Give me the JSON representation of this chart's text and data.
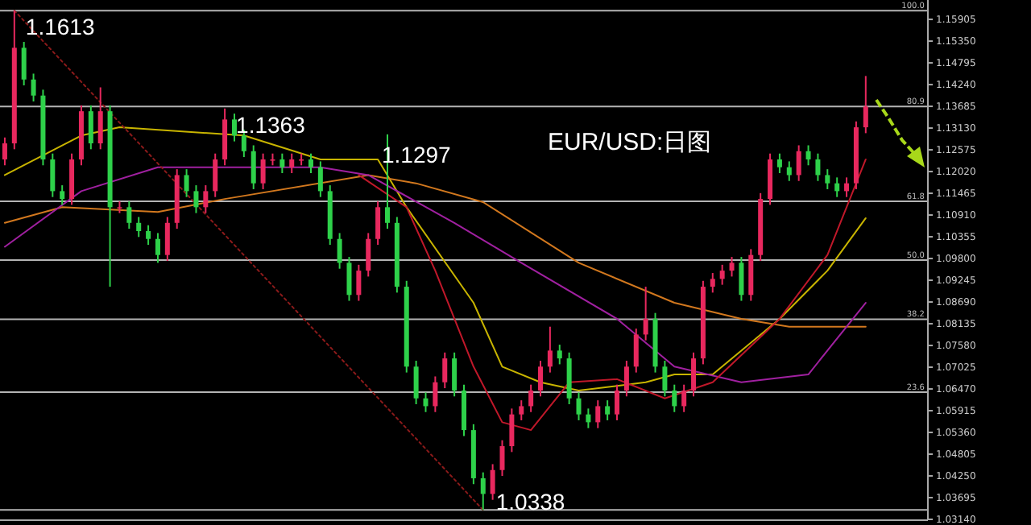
{
  "chart_data": {
    "type": "candlestick",
    "title": "EUR/USD:日图",
    "categories": [
      null,
      null,
      null,
      null,
      null,
      null,
      null,
      null,
      null,
      null,
      null,
      null,
      null,
      null,
      null,
      null,
      null,
      null,
      null,
      null,
      null,
      null,
      null,
      null,
      null,
      null,
      null,
      null,
      null,
      null,
      null,
      null,
      null,
      null,
      null,
      null,
      null,
      null,
      null,
      null,
      null,
      null,
      null,
      null,
      null,
      null,
      null,
      null,
      null,
      null,
      null,
      null,
      null,
      null,
      null,
      null,
      null,
      null,
      null,
      null,
      null,
      null,
      null,
      null,
      null,
      null,
      null,
      null,
      null,
      null,
      null,
      null,
      null,
      null,
      null,
      null,
      null,
      null,
      null,
      null,
      null,
      null,
      null,
      null,
      null,
      null,
      null,
      null,
      null,
      null,
      null,
      null,
      null,
      null,
      null,
      null,
      null
    ],
    "ohlc": [
      [
        1.1233,
        1.1289,
        1.1218,
        1.1274
      ],
      [
        1.1274,
        1.1613,
        1.1259,
        1.1518
      ],
      [
        1.1518,
        1.1533,
        1.1422,
        1.1437
      ],
      [
        1.1437,
        1.1452,
        1.1381,
        1.1396
      ],
      [
        1.1396,
        1.1411,
        1.1218,
        1.1233
      ],
      [
        1.1233,
        1.1248,
        1.1137,
        1.1152
      ],
      [
        1.1152,
        1.1167,
        1.1117,
        1.1132
      ],
      [
        1.1132,
        1.1248,
        1.1117,
        1.1233
      ],
      [
        1.1233,
        1.1371,
        1.1218,
        1.1356
      ],
      [
        1.1356,
        1.1371,
        1.1259,
        1.1274
      ],
      [
        1.1274,
        1.1417,
        1.1259,
        1.1356
      ],
      [
        1.1356,
        1.1371,
        1.0908,
        1.1111
      ],
      [
        1.1111,
        1.1126,
        1.1096,
        1.1111
      ],
      [
        1.1111,
        1.1126,
        1.1056,
        1.1071
      ],
      [
        1.1071,
        1.1086,
        1.1035,
        1.105
      ],
      [
        1.105,
        1.1065,
        1.1015,
        1.103
      ],
      [
        1.103,
        1.1045,
        1.0969,
        1.0989
      ],
      [
        1.0989,
        1.1086,
        1.0974,
        1.1071
      ],
      [
        1.1071,
        1.1208,
        1.1056,
        1.1193
      ],
      [
        1.1193,
        1.1208,
        1.1137,
        1.1152
      ],
      [
        1.1152,
        1.1167,
        1.1096,
        1.1111
      ],
      [
        1.1111,
        1.1167,
        1.1096,
        1.1152
      ],
      [
        1.1152,
        1.1248,
        1.1137,
        1.1233
      ],
      [
        1.1233,
        1.1363,
        1.1218,
        1.1335
      ],
      [
        1.1335,
        1.135,
        1.1279,
        1.1294
      ],
      [
        1.1294,
        1.1309,
        1.1239,
        1.1254
      ],
      [
        1.1254,
        1.1269,
        1.1157,
        1.1172
      ],
      [
        1.1172,
        1.1248,
        1.1157,
        1.1233
      ],
      [
        1.1233,
        1.1248,
        1.1218,
        1.1233
      ],
      [
        1.1233,
        1.1248,
        1.1198,
        1.1213
      ],
      [
        1.1213,
        1.1248,
        1.1198,
        1.1233
      ],
      [
        1.1233,
        1.1248,
        1.1218,
        1.1233
      ],
      [
        1.1233,
        1.1248,
        1.1198,
        1.1213
      ],
      [
        1.1213,
        1.1228,
        1.1137,
        1.1152
      ],
      [
        1.1152,
        1.1167,
        1.1015,
        1.103
      ],
      [
        1.103,
        1.1045,
        1.0954,
        1.0969
      ],
      [
        1.0969,
        1.0984,
        1.0872,
        1.0887
      ],
      [
        1.0887,
        1.0964,
        1.0872,
        1.0949
      ],
      [
        1.0949,
        1.1045,
        1.0934,
        1.103
      ],
      [
        1.103,
        1.1126,
        1.1015,
        1.1111
      ],
      [
        1.1111,
        1.1297,
        1.1056,
        1.1071
      ],
      [
        1.1071,
        1.1086,
        1.0893,
        1.0908
      ],
      [
        1.0908,
        1.0923,
        1.0689,
        1.0704
      ],
      [
        1.0704,
        1.0719,
        1.0608,
        1.0623
      ],
      [
        1.0623,
        1.0638,
        1.0588,
        1.0603
      ],
      [
        1.0603,
        1.0679,
        1.0588,
        1.0664
      ],
      [
        1.0664,
        1.074,
        1.0649,
        1.0725
      ],
      [
        1.0725,
        1.074,
        1.0628,
        1.0643
      ],
      [
        1.0643,
        1.0658,
        1.0527,
        1.0542
      ],
      [
        1.0542,
        1.0557,
        1.0404,
        1.0419
      ],
      [
        1.0419,
        1.0434,
        1.0338,
        1.0379
      ],
      [
        1.0379,
        1.0455,
        1.0364,
        1.044
      ],
      [
        1.044,
        1.0516,
        1.0425,
        1.0501
      ],
      [
        1.0501,
        1.0597,
        1.0486,
        1.0582
      ],
      [
        1.0582,
        1.0618,
        1.0567,
        1.0603
      ],
      [
        1.0603,
        1.0658,
        1.0588,
        1.0643
      ],
      [
        1.0643,
        1.0719,
        1.0628,
        1.0704
      ],
      [
        1.0704,
        1.0806,
        1.0689,
        1.0745
      ],
      [
        1.0745,
        1.076,
        1.071,
        1.0725
      ],
      [
        1.0725,
        1.074,
        1.0608,
        1.0623
      ],
      [
        1.0623,
        1.0638,
        1.0567,
        1.0582
      ],
      [
        1.0582,
        1.0597,
        1.0547,
        1.0562
      ],
      [
        1.0562,
        1.0618,
        1.0547,
        1.0603
      ],
      [
        1.0603,
        1.0618,
        1.0567,
        1.0582
      ],
      [
        1.0582,
        1.0658,
        1.0567,
        1.0643
      ],
      [
        1.0643,
        1.0719,
        1.0628,
        1.0704
      ],
      [
        1.0704,
        1.0801,
        1.0689,
        1.0786
      ],
      [
        1.0786,
        1.0908,
        1.0771,
        1.0826
      ],
      [
        1.0826,
        1.0841,
        1.0689,
        1.0704
      ],
      [
        1.0704,
        1.0719,
        1.0628,
        1.0643
      ],
      [
        1.0643,
        1.0658,
        1.0588,
        1.0603
      ],
      [
        1.0603,
        1.0658,
        1.0588,
        1.0643
      ],
      [
        1.0643,
        1.074,
        1.0628,
        1.0725
      ],
      [
        1.0725,
        1.0923,
        1.071,
        1.0908
      ],
      [
        1.0908,
        1.0943,
        1.0893,
        1.0928
      ],
      [
        1.0928,
        1.0964,
        1.0913,
        1.0949
      ],
      [
        1.0949,
        1.0984,
        1.0934,
        1.0969
      ],
      [
        1.0969,
        1.0984,
        1.0872,
        1.0887
      ],
      [
        1.0887,
        1.1004,
        1.0872,
        1.0989
      ],
      [
        1.0989,
        1.1147,
        1.0974,
        1.1132
      ],
      [
        1.1132,
        1.1248,
        1.1117,
        1.1233
      ],
      [
        1.1233,
        1.1248,
        1.1198,
        1.1213
      ],
      [
        1.1213,
        1.1228,
        1.1178,
        1.1193
      ],
      [
        1.1193,
        1.1269,
        1.1178,
        1.1254
      ],
      [
        1.1254,
        1.1269,
        1.1218,
        1.1233
      ],
      [
        1.1233,
        1.1248,
        1.1178,
        1.1193
      ],
      [
        1.1193,
        1.1208,
        1.1157,
        1.1172
      ],
      [
        1.1172,
        1.1187,
        1.1137,
        1.1152
      ],
      [
        1.1152,
        1.1187,
        1.1137,
        1.1172
      ],
      [
        1.1172,
        1.133,
        1.1157,
        1.1315
      ],
      [
        1.1315,
        1.1446,
        1.13,
        1.1368
      ],
      null,
      null,
      null,
      null,
      null,
      null
    ],
    "series": [
      {
        "type": "line",
        "color": "#c8b400",
        "values": [
          1.1193,
          null,
          null,
          null,
          null,
          null,
          null,
          null,
          1.1294,
          null,
          null,
          null,
          1.1315,
          null,
          null,
          null,
          null,
          null,
          null,
          null,
          null,
          null,
          null,
          null,
          null,
          1.1294,
          null,
          null,
          null,
          null,
          null,
          null,
          null,
          1.1233,
          null,
          null,
          null,
          null,
          null,
          1.1233,
          null,
          null,
          1.1111,
          null,
          null,
          null,
          null,
          null,
          null,
          1.0867,
          null,
          null,
          1.0704,
          null,
          null,
          null,
          1.0664,
          null,
          null,
          null,
          1.0643,
          null,
          null,
          null,
          null,
          null,
          null,
          1.0664,
          null,
          null,
          1.0684,
          null,
          null,
          null,
          1.0684,
          null,
          null,
          null,
          null,
          null,
          null,
          1.0826,
          null,
          null,
          null,
          null,
          1.0949,
          null,
          null,
          null,
          1.1083,
          null,
          null,
          null,
          null,
          null,
          null
        ]
      },
      {
        "type": "line",
        "color": "#d2781e",
        "values": [
          1.1071,
          null,
          null,
          null,
          null,
          null,
          1.1111,
          null,
          null,
          null,
          null,
          null,
          null,
          null,
          null,
          null,
          1.1099,
          null,
          null,
          null,
          null,
          null,
          null,
          1.1132,
          null,
          null,
          null,
          null,
          null,
          null,
          null,
          null,
          null,
          null,
          null,
          null,
          null,
          null,
          1.1193,
          null,
          null,
          null,
          null,
          1.1172,
          null,
          null,
          null,
          null,
          null,
          null,
          1.1124,
          null,
          null,
          null,
          null,
          null,
          null,
          null,
          null,
          null,
          1.0969,
          null,
          null,
          null,
          null,
          null,
          null,
          null,
          null,
          null,
          1.0867,
          null,
          null,
          null,
          null,
          null,
          null,
          1.0826,
          null,
          null,
          null,
          null,
          1.0806,
          null,
          null,
          null,
          null,
          null,
          null,
          null,
          1.0806,
          null,
          null,
          null,
          null,
          null,
          null
        ]
      },
      {
        "type": "line",
        "color": "#a020a0",
        "values": [
          1.101,
          null,
          null,
          null,
          null,
          null,
          null,
          null,
          1.1152,
          null,
          null,
          null,
          null,
          null,
          null,
          null,
          1.1213,
          null,
          null,
          null,
          null,
          null,
          null,
          null,
          null,
          1.1213,
          null,
          null,
          null,
          null,
          null,
          null,
          null,
          1.1213,
          null,
          null,
          null,
          null,
          1.1193,
          null,
          null,
          null,
          null,
          null,
          null,
          null,
          null,
          1.1071,
          null,
          null,
          null,
          null,
          null,
          null,
          1.0969,
          null,
          null,
          null,
          null,
          null,
          null,
          null,
          null,
          null,
          1.0826,
          null,
          null,
          null,
          null,
          null,
          1.0704,
          null,
          null,
          null,
          null,
          null,
          null,
          1.0664,
          null,
          null,
          null,
          null,
          null,
          null,
          1.0684,
          null,
          null,
          null,
          null,
          null,
          1.0867,
          null,
          null,
          null,
          null,
          null,
          null
        ]
      },
      {
        "type": "line",
        "color": "#c0182a",
        "values": [
          null,
          null,
          null,
          null,
          null,
          null,
          null,
          null,
          null,
          null,
          null,
          null,
          null,
          null,
          null,
          null,
          null,
          null,
          null,
          null,
          null,
          null,
          null,
          null,
          null,
          null,
          null,
          null,
          null,
          null,
          null,
          null,
          null,
          null,
          null,
          null,
          null,
          1.1193,
          null,
          null,
          null,
          null,
          1.1111,
          null,
          null,
          1.0949,
          null,
          null,
          null,
          1.0704,
          null,
          null,
          1.0562,
          null,
          null,
          1.0542,
          null,
          null,
          null,
          1.0664,
          null,
          null,
          null,
          null,
          1.0672,
          null,
          null,
          null,
          null,
          1.0623,
          null,
          null,
          null,
          null,
          1.0664,
          null,
          null,
          null,
          null,
          null,
          null,
          1.0826,
          null,
          null,
          null,
          null,
          1.0989,
          null,
          null,
          null,
          1.1233,
          null,
          null,
          null,
          null,
          null,
          null
        ]
      },
      {
        "type": "line",
        "color": "#8b1a1a",
        "line_style": "dotted",
        "values": [
          null,
          1.1613,
          null,
          null,
          null,
          null,
          null,
          null,
          null,
          null,
          null,
          null,
          null,
          null,
          null,
          null,
          null,
          null,
          null,
          null,
          null,
          null,
          null,
          null,
          null,
          null,
          null,
          null,
          null,
          null,
          null,
          null,
          null,
          null,
          null,
          null,
          null,
          null,
          null,
          null,
          null,
          null,
          null,
          null,
          null,
          null,
          null,
          null,
          null,
          null,
          1.0338,
          null,
          null,
          null,
          null,
          null,
          null,
          null,
          null,
          null,
          null,
          null,
          null,
          null,
          null,
          null,
          null,
          null,
          null,
          null,
          null,
          null,
          null,
          null,
          null,
          null,
          null,
          null,
          null,
          null,
          null,
          null,
          null,
          null,
          null,
          null,
          null,
          null,
          null,
          null,
          null,
          null,
          null,
          null,
          null,
          null,
          null
        ]
      }
    ],
    "ylim": [
      1.0312,
      1.164
    ],
    "yticks": [
      {
        "value": 1.15905,
        "label": "1.15905"
      },
      {
        "value": 1.1535,
        "label": "1.15350"
      },
      {
        "value": 1.14795,
        "label": "1.14795"
      },
      {
        "value": 1.1424,
        "label": "1.14240"
      },
      {
        "value": 1.13685,
        "label": "1.13685"
      },
      {
        "value": 1.1313,
        "label": "1.13130"
      },
      {
        "value": 1.12575,
        "label": "1.12575"
      },
      {
        "value": 1.1202,
        "label": "1.12020"
      },
      {
        "value": 1.11465,
        "label": "1.11465"
      },
      {
        "value": 1.1091,
        "label": "1.10910"
      },
      {
        "value": 1.10355,
        "label": "1.10355"
      },
      {
        "value": 1.098,
        "label": "1.09800"
      },
      {
        "value": 1.09245,
        "label": "1.09245"
      },
      {
        "value": 1.0869,
        "label": "1.08690"
      },
      {
        "value": 1.08135,
        "label": "1.08135"
      },
      {
        "value": 1.0758,
        "label": "1.07580"
      },
      {
        "value": 1.07025,
        "label": "1.07025"
      },
      {
        "value": 1.0647,
        "label": "1.06470"
      },
      {
        "value": 1.05915,
        "label": "1.05915"
      },
      {
        "value": 1.0536,
        "label": "1.05360"
      },
      {
        "value": 1.04805,
        "label": "1.04805"
      },
      {
        "value": 1.0425,
        "label": "1.04250"
      },
      {
        "value": 1.03695,
        "label": "1.03695"
      },
      {
        "value": 1.0314,
        "label": "1.03140"
      }
    ],
    "ref_lines": [
      {
        "axis": "y",
        "value": 1.1613,
        "color": "#b4b4b4"
      },
      {
        "axis": "y",
        "value": 1.1368,
        "color": "#b4b4b4"
      },
      {
        "axis": "y",
        "value": 1.1126,
        "color": "#b4b4b4"
      },
      {
        "axis": "y",
        "value": 1.0976,
        "color": "#b4b4b4"
      },
      {
        "axis": "y",
        "value": 1.0825,
        "color": "#b4b4b4"
      },
      {
        "axis": "y",
        "value": 1.0639,
        "color": "#b4b4b4"
      },
      {
        "axis": "y",
        "value": 1.0338,
        "color": "#b4b4b4"
      }
    ],
    "annotations": [
      {
        "text": "1.1613",
        "y": 1.1613
      },
      {
        "text": "1.1363",
        "y": 1.1363
      },
      {
        "text": "1.1297"
      },
      {
        "text": "1.0338",
        "y": 1.0338
      },
      "100.0",
      "80.9",
      "61.8",
      "50.0",
      "38.2",
      "23.6"
    ]
  }
}
